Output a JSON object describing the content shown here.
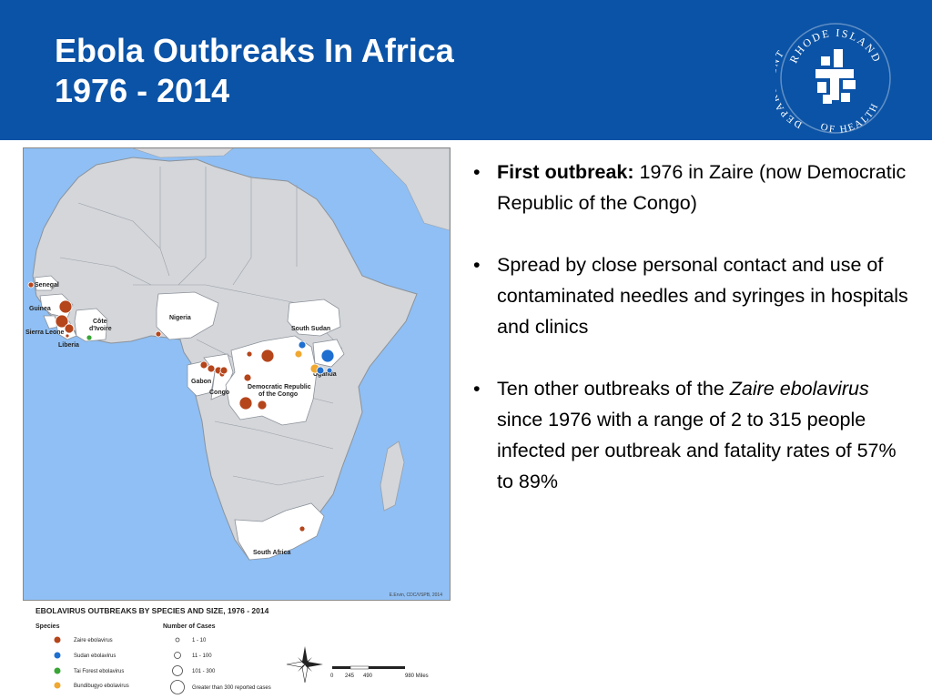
{
  "slide": {
    "title_line1": "Ebola Outbreaks In Africa",
    "title_line2": "1976 - 2014"
  },
  "logo": {
    "text_top": "RHODE ISLAND",
    "text_left": "DEPARTMENT",
    "text_bottom": "OF HEALTH",
    "color": "#ffffff"
  },
  "map": {
    "credit": "E.Ervin, CDC/VSPB, 2014",
    "country_labels": {
      "senegal": "Senegal",
      "guinea": "Guinea",
      "sierra_leone": "Sierra Leone",
      "liberia": "Liberia",
      "cote_divoire_1": "Côte",
      "cote_divoire_2": "d'Ivoire",
      "nigeria": "Nigeria",
      "gabon": "Gabon",
      "congo": "Congo",
      "drc_1": "Democratic Republic",
      "drc_2": "of the Congo",
      "south_sudan": "South Sudan",
      "uganda": "Uganda",
      "south_africa": "South Africa"
    },
    "colors": {
      "ocean": "#8fbff4",
      "land": "#d4d6da",
      "affected": "#ffffff",
      "zaire": "#b5451b",
      "sudan": "#1f6fd0",
      "tai_forest": "#3aa537",
      "bundibugyo": "#f0a830"
    }
  },
  "legend": {
    "title": "EBOLAVIRUS OUTBREAKS BY SPECIES AND SIZE, 1976 - 2014",
    "species_header": "Species",
    "cases_header": "Number of Cases",
    "species": [
      {
        "label": "Zaire ebolavirus",
        "color": "#b5451b"
      },
      {
        "label": "Sudan ebolavirus",
        "color": "#1f6fd0"
      },
      {
        "label": "Tai Forest ebolavirus",
        "color": "#3aa537"
      },
      {
        "label": "Bundibugyo ebolavirus",
        "color": "#f0a830"
      }
    ],
    "cases": [
      "1 - 10",
      "11 - 100",
      "101 - 300",
      "Greater than 300 reported cases"
    ],
    "scale_ticks": [
      "0",
      "245",
      "490",
      "980 Miles"
    ]
  },
  "bullets": [
    {
      "bold": "First outbreak:",
      "text": " 1976 in Zaire (now Democratic Republic of the Congo)"
    },
    {
      "text": "Spread by close personal contact and use of contaminated needles and syringes in hospitals and clinics"
    },
    {
      "pre": "Ten other outbreaks of the ",
      "italic": "Zaire ebolavirus",
      "post": " since 1976 with a range of 2 to 315 people infected per outbreak and fatality rates of 57% to 89%"
    }
  ],
  "bullet_char": "•"
}
